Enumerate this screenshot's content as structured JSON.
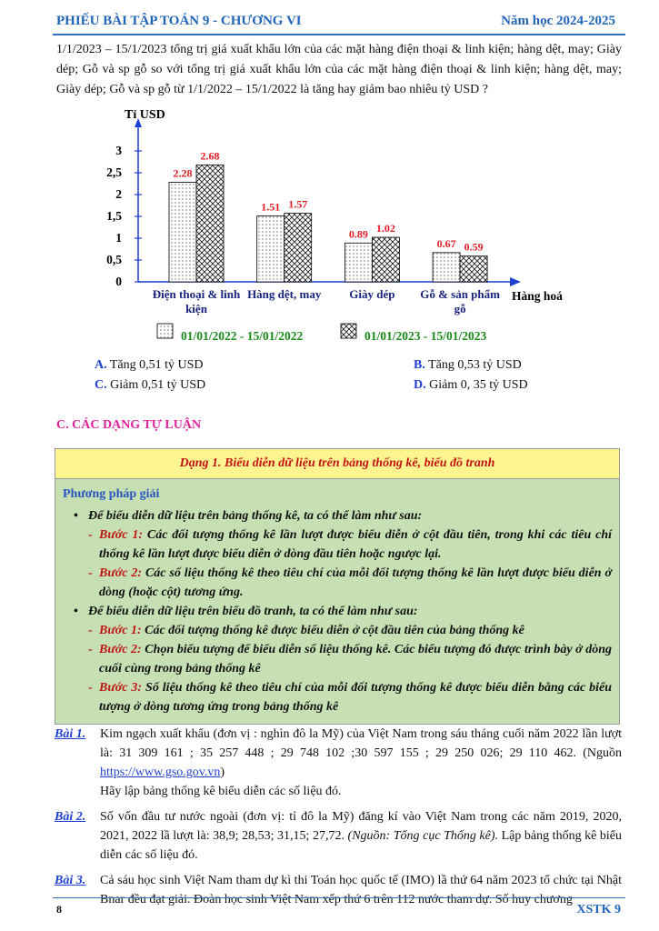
{
  "header": {
    "left": "PHIẾU BÀI TẬP TOÁN 9 - CHƯƠNG VI",
    "right": "Năm học 2024-2025"
  },
  "question": "1/1/2023 – 15/1/2023 tổng trị giá xuất khẩu lớn của các mặt hàng điện thoại & linh kiện; hàng dệt, may; Giày dép; Gỗ và sp gỗ so với tổng trị giá xuất khẩu lớn của các mặt hàng điện thoại & linh kiện; hàng dệt, may; Giày dép; Gỗ và sp gỗ  từ 1/1/2022 – 15/1/2022 là tăng hay giảm bao nhiêu tỷ USD ?",
  "chart_data": {
    "type": "bar",
    "y_label": "Tỉ USD",
    "x_label": "Hàng hoá",
    "categories": [
      "Điện thoại & linh kiện",
      "Hàng dệt, may",
      "Giày dép",
      "Gỗ & sản phẩm gỗ"
    ],
    "series": [
      {
        "name": "01/01/2022 - 15/01/2022",
        "color": "#000000",
        "pattern": "dots",
        "values": [
          2.28,
          1.51,
          0.89,
          0.67
        ]
      },
      {
        "name": "01/01/2023 - 15/01/2023",
        "color": "#000000",
        "pattern": "crosshatch",
        "values": [
          2.68,
          1.57,
          1.02,
          0.59
        ]
      }
    ],
    "ylim": [
      0,
      3.5
    ],
    "yticks": [
      0,
      {
        "value": 0.5,
        "label": "0,5"
      },
      1,
      {
        "value": 1.5,
        "label": "1,5"
      },
      2,
      {
        "value": 2.5,
        "label": "2,5"
      },
      3
    ],
    "label_color": "#e31b23",
    "axis_color": "#1f3fd0",
    "category_color": "#1a237e",
    "legend_color": "#1a8a1a"
  },
  "options": [
    {
      "letter": "A.",
      "text": "Tăng 0,51 tỷ USD"
    },
    {
      "letter": "B.",
      "text": "Tăng 0,53 tỷ USD"
    },
    {
      "letter": "C.",
      "text": "Giảm 0,51 tỷ USD"
    },
    {
      "letter": "D.",
      "text": "Giảm 0, 35 tỷ USD"
    }
  ],
  "section_title": "C. CÁC DẠNG TỰ LUẬN",
  "box": {
    "title": "Dạng 1. Biểu diễn dữ liệu trên bảng thống kê, biểu đồ tranh",
    "method_label": "Phương pháp giải",
    "items": [
      {
        "text": "Để biểu diễn dữ liệu trên bảng thống kê, ta có thể làm như sau:",
        "steps": [
          {
            "label": "Bước 1:",
            "text": "Các đối tượng thống kê lần lượt được biểu diễn ở cột đầu tiên, trong khi các tiêu chí thống kê lần lượt được biểu diễn ở dòng đầu tiên hoặc ngược lại."
          },
          {
            "label": "Bước 2:",
            "text": "Các số liệu thống kê theo tiêu chí của mỗi đối tượng thống kê lần lượt được biểu diễn ở dòng (hoặc cột) tương ứng."
          }
        ]
      },
      {
        "text": "Để biểu diễn dữ liệu trên biểu đồ tranh, ta có thể làm như sau:",
        "steps": [
          {
            "label": "Bước 1:",
            "text": "Các đối tượng thống kê được biểu diễn ở cột đầu tiên của bảng thống kê"
          },
          {
            "label": "Bước 2:",
            "text": "Chọn biểu tượng để biểu diễn số liệu thống kê. Các biểu tượng đó được trình bày ở dòng cuối cùng trong bảng thống kê"
          },
          {
            "label": "Bước 3:",
            "text": "Số liệu thống kê theo tiêu chí của mỗi đối tượng thống kê được biểu diễn bằng các biểu tượng ở dòng tương ứng trong bảng thống kê"
          }
        ]
      }
    ]
  },
  "exercises": [
    {
      "label": "Bài 1.",
      "parts": [
        {
          "text": "Kim ngạch xuất khẩu (đơn vị : nghìn đô la Mỹ) của Việt Nam trong sáu tháng cuối năm 2022 lần lượt là: 31 309 161 ; 35 257 448 ; 29 748 102 ;30 597 155 ; 29 250 026; 29 110 462. (Nguồn "
        },
        {
          "text": "https://www.gso.gov.vn",
          "link": true
        },
        {
          "text": ")"
        }
      ],
      "note": "Hãy lập bảng thống kê biểu diễn các số liệu đó."
    },
    {
      "label": "Bài 2.",
      "parts": [
        {
          "text": "Số vốn đầu tư nước ngoài (đơn vị: tỉ đô la Mỹ) đăng kí vào Việt Nam trong các năm 2019, 2020, 2021, 2022 lầ lượt là: 38,9; 28,53; 31,15; 27,72. "
        },
        {
          "text": "(Nguồn: Tổng cục Thống kê).",
          "italic": true
        },
        {
          "text": " Lập bảng thống kê biểu diễn các số liệu đó."
        }
      ]
    },
    {
      "label": "Bài 3.",
      "parts": [
        {
          "text": "Cả sáu học sinh Việt Nam tham dự kì thi Toán học quốc tế (IMO) lầ thứ 64 năm 2023 tổ chức tại Nhật Bnar đều đạt giải. Đoàn học sinh Việt Nam xếp thứ 6 trên 112 nước tham dự. Số huy chương"
        }
      ]
    }
  ],
  "footer": {
    "page": "8",
    "code": "XSTK 9"
  }
}
